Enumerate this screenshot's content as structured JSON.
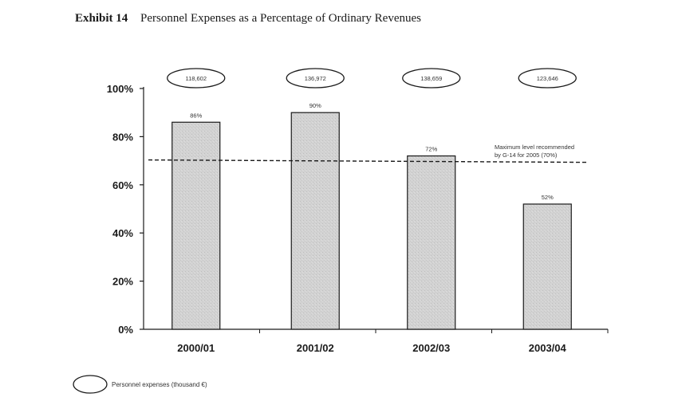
{
  "exhibit": {
    "label": "Exhibit 14",
    "title": "Personnel Expenses as a Percentage of Ordinary Revenues"
  },
  "chart_data": {
    "type": "bar",
    "categories": [
      "2000/01",
      "2001/02",
      "2002/03",
      "2003/04"
    ],
    "values": [
      86,
      90,
      72,
      52
    ],
    "value_labels": [
      "86%",
      "90%",
      "72%",
      "52%"
    ],
    "personnel_expenses": [
      "118,602",
      "136,972",
      "138,659",
      "123,646"
    ],
    "ylim": [
      0,
      100
    ],
    "yticks": [
      0,
      20,
      40,
      60,
      80,
      100
    ],
    "ytick_labels": [
      "0%",
      "20%",
      "40%",
      "60%",
      "80%",
      "100%"
    ],
    "reference_line": {
      "value": 70,
      "style": "dashed",
      "label_line1": "Maximum level recommended",
      "label_line2": "by G-14 for 2005 (70%)"
    },
    "legend": {
      "label": "Personnel expenses (thousand €)",
      "placement": "bottom-left"
    },
    "bar_color": "#d4d4d4",
    "bar_edge_color": "#1a1a1a",
    "grid": false
  }
}
